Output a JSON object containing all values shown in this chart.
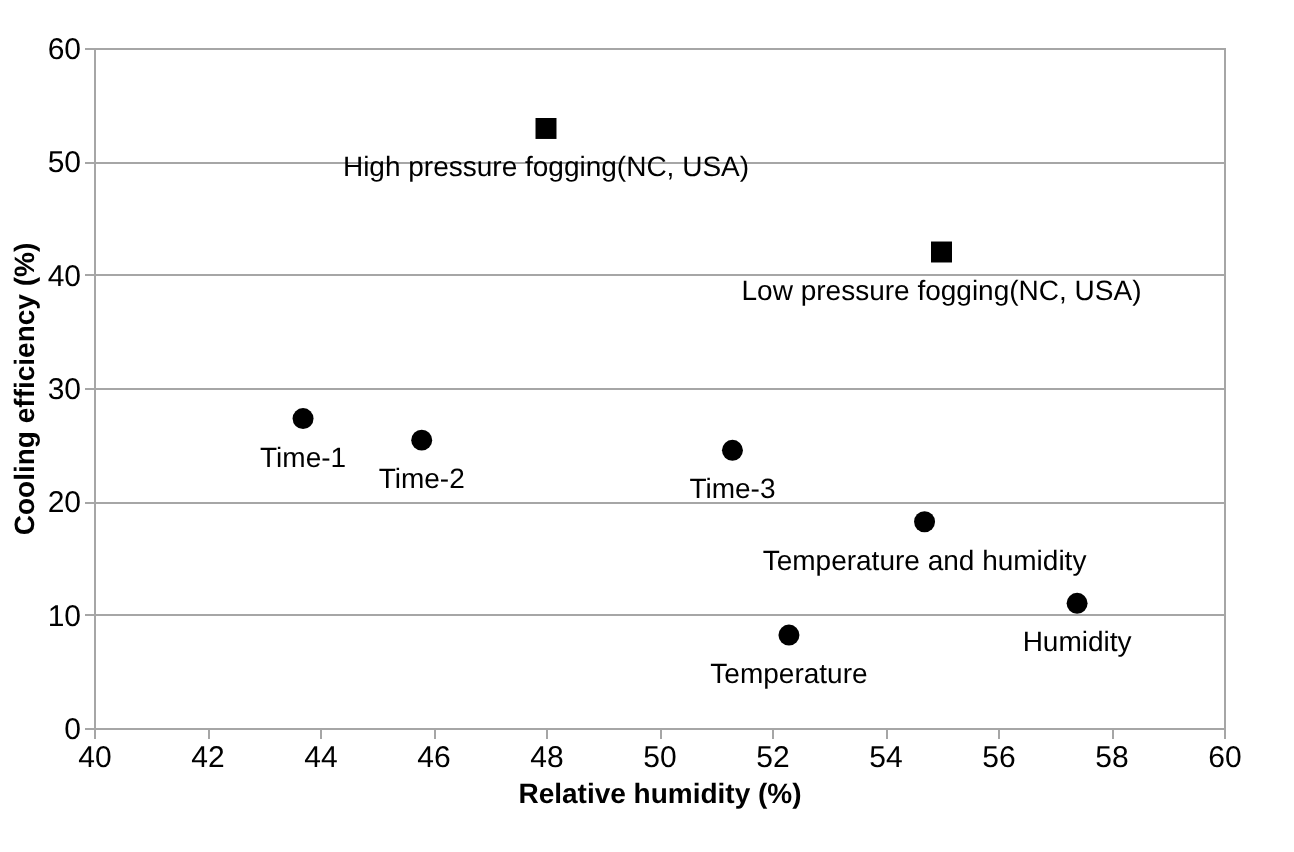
{
  "chart_data": {
    "type": "scatter",
    "xlabel": "Relative humidity (%)",
    "ylabel": "Cooling efficiency (%)",
    "xlim": [
      40,
      60
    ],
    "xticks": [
      40,
      42,
      44,
      46,
      48,
      50,
      52,
      54,
      56,
      58,
      60
    ],
    "ylim": [
      0,
      60
    ],
    "yticks": [
      0,
      10,
      20,
      30,
      40,
      50,
      60
    ],
    "grid": "y",
    "series": [
      {
        "color": "#000000",
        "marker": "circle",
        "x": [
          43.7,
          45.8,
          51.3,
          54.7,
          52.3,
          57.4
        ],
        "values": [
          27.3,
          25.4,
          24.5,
          18.2,
          8.2,
          11.0
        ]
      },
      {
        "color": "#000000",
        "marker": "square",
        "x": [
          48.0,
          55.0
        ],
        "values": [
          52.9,
          42.0
        ]
      }
    ],
    "annotations": [
      {
        "text": "Time-1",
        "x": 43.7,
        "y": 27.3
      },
      {
        "text": "Time-2",
        "x": 45.8,
        "y": 25.4
      },
      {
        "text": "Time-3",
        "x": 51.3,
        "y": 24.5
      },
      {
        "text": "Temperature and humidity",
        "x": 54.7,
        "y": 18.2
      },
      {
        "text": "Temperature",
        "x": 52.3,
        "y": 8.2
      },
      {
        "text": "Humidity",
        "x": 57.4,
        "y": 11.0
      },
      {
        "text": "High pressure fogging(NC, USA)",
        "x": 48.0,
        "y": 52.9
      },
      {
        "text": "Low pressure fogging(NC, USA)",
        "x": 55.0,
        "y": 42.0
      }
    ]
  }
}
